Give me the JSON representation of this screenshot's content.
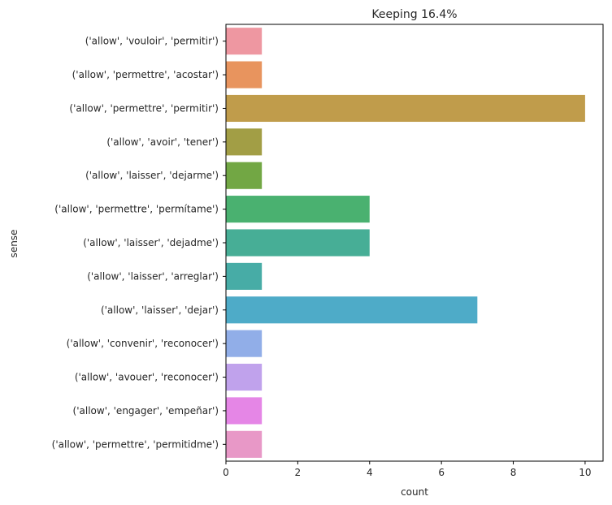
{
  "chart_data": {
    "type": "bar",
    "orientation": "horizontal",
    "title": "Keeping 16.4%",
    "xlabel": "count",
    "ylabel": "sense",
    "xlim": [
      0,
      10.5
    ],
    "xticks": [
      0,
      2,
      4,
      6,
      8,
      10
    ],
    "grid": false,
    "categories": [
      "('allow', 'vouloir', 'permitir')",
      "('allow', 'permettre', 'acostar')",
      "('allow', 'permettre', 'permitir')",
      "('allow', 'avoir', 'tener')",
      "('allow', 'laisser', 'dejarme')",
      "('allow', 'permettre', 'permítame')",
      "('allow', 'laisser', 'dejadme')",
      "('allow', 'laisser', 'arreglar')",
      "('allow', 'laisser', 'dejar')",
      "('allow', 'convenir', 'reconocer')",
      "('allow', 'avouer', 'reconocer')",
      "('allow', 'engager', 'empeñar')",
      "('allow', 'permettre', 'permitidme')"
    ],
    "values": [
      1,
      1,
      10,
      1,
      1,
      4,
      4,
      1,
      7,
      1,
      1,
      1,
      1
    ],
    "colors": [
      "#ee97a1",
      "#e8945e",
      "#c09c4b",
      "#a29e45",
      "#72a744",
      "#4ab170",
      "#47ae96",
      "#47aca6",
      "#4eabc8",
      "#91aee8",
      "#c0a2ec",
      "#e586e6",
      "#e898c7"
    ]
  }
}
